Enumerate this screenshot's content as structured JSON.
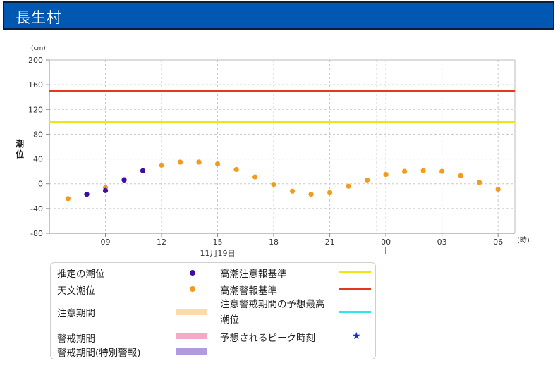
{
  "header": {
    "title": "長生村"
  },
  "colors": {
    "title_bar": "#0058b3",
    "estimated_dot": "#3a0ea8",
    "astronomical_dot": "#f29c1e",
    "caution_line": "#f2e313",
    "warning_line": "#e4381e",
    "peak_line": "#2de6ee",
    "caution_period": "#fbd9a9",
    "warning_period": "#f6a9c6",
    "special_warning_period": "#b39ae0",
    "peak_star": "#1a2ed6"
  },
  "chart_data": {
    "type": "scatter",
    "unit_label": "(cm)",
    "ylabel": "潮位",
    "x_unit_label": "(時)",
    "date_label": "11月19日",
    "ylim": [
      -80,
      200
    ],
    "y_ticks": [
      -80,
      -40,
      0,
      40,
      80,
      120,
      160,
      200
    ],
    "x_tick_labels": [
      "09",
      "12",
      "15",
      "18",
      "21",
      "00",
      "03",
      "06"
    ],
    "grid": true,
    "thresholds": [
      {
        "name": "高潮警報基準",
        "value": 150,
        "color": "#e4381e"
      },
      {
        "name": "高潮注意報基準",
        "value": 100,
        "color": "#f2e313"
      }
    ],
    "series": [
      {
        "name": "推定の潮位",
        "color": "#3a0ea8",
        "points": [
          {
            "hour": 8,
            "value": -17
          },
          {
            "hour": 9,
            "value": -11
          },
          {
            "hour": 10,
            "value": 6
          },
          {
            "hour": 11,
            "value": 21
          }
        ]
      },
      {
        "name": "天文潮位",
        "color": "#f29c1e",
        "points": [
          {
            "hour": 7,
            "value": -24
          },
          {
            "hour": 8,
            "value": -17
          },
          {
            "hour": 9,
            "value": -6
          },
          {
            "hour": 10,
            "value": 7
          },
          {
            "hour": 11,
            "value": 21
          },
          {
            "hour": 12,
            "value": 30
          },
          {
            "hour": 13,
            "value": 35
          },
          {
            "hour": 14,
            "value": 35
          },
          {
            "hour": 15,
            "value": 32
          },
          {
            "hour": 16,
            "value": 23
          },
          {
            "hour": 17,
            "value": 11
          },
          {
            "hour": 18,
            "value": -1
          },
          {
            "hour": 19,
            "value": -12
          },
          {
            "hour": 20,
            "value": -17
          },
          {
            "hour": 21,
            "value": -14
          },
          {
            "hour": 22,
            "value": -4
          },
          {
            "hour": 23,
            "value": 6
          },
          {
            "hour": 24,
            "value": 15
          },
          {
            "hour": 25,
            "value": 20
          },
          {
            "hour": 26,
            "value": 21
          },
          {
            "hour": 27,
            "value": 20
          },
          {
            "hour": 28,
            "value": 13
          },
          {
            "hour": 29,
            "value": 2
          },
          {
            "hour": 30,
            "value": -9
          }
        ]
      }
    ]
  },
  "legend": {
    "estimated": "推定の潮位",
    "astronomical": "天文潮位",
    "caution_period": "注意期間",
    "warning_period": "警戒期間",
    "special_warning_period": "警戒期間(特別警報)",
    "caution_standard": "高潮注意報基準",
    "warning_standard": "高潮警報基準",
    "peak_prediction": "注意警戒期間の予想最高潮位",
    "peak_time": "予想されるピーク時刻"
  }
}
